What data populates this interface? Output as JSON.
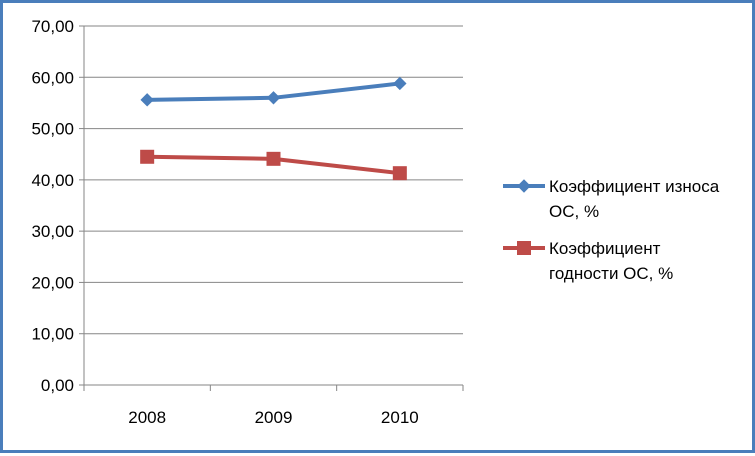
{
  "chart_data": {
    "type": "line",
    "title": "",
    "xlabel": "",
    "ylabel": "",
    "categories": [
      "2008",
      "2009",
      "2010"
    ],
    "ylim": [
      0,
      70
    ],
    "y_ticks": [
      "0,00",
      "10,00",
      "20,00",
      "30,00",
      "40,00",
      "50,00",
      "60,00",
      "70,00"
    ],
    "grid": "horizontal",
    "legend_position": "right",
    "series": [
      {
        "name": "Коэффициент износа ОС, %",
        "legend_lines": [
          "Коэффициент износа",
          "ОС, %"
        ],
        "values": [
          55.6,
          56.0,
          58.8
        ],
        "color": "#4a7ebb",
        "marker": "diamond"
      },
      {
        "name": "Коэффициент годности ОС, %",
        "legend_lines": [
          "Коэффициент",
          "годности ОС, %"
        ],
        "values": [
          44.5,
          44.1,
          41.3
        ],
        "color": "#be4b48",
        "marker": "square"
      }
    ]
  }
}
